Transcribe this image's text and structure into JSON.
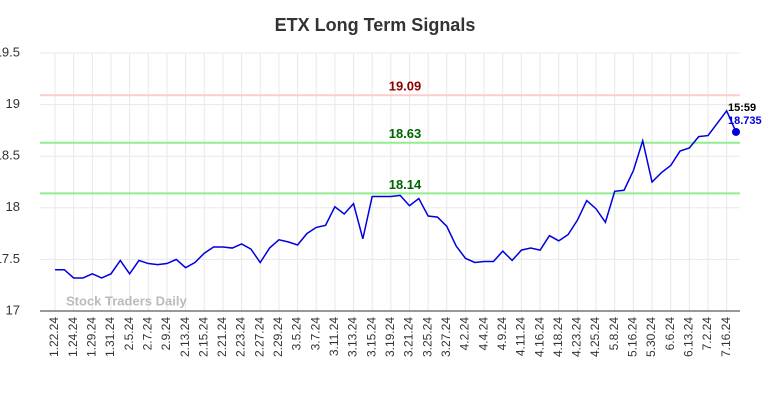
{
  "chart_data": {
    "type": "line",
    "title": "ETX Long Term Signals",
    "categories": [
      "1.22.24",
      null,
      "1.24.24",
      null,
      "1.29.24",
      null,
      "1.31.24",
      null,
      "2.5.24",
      null,
      "2.7.24",
      null,
      "2.9.24",
      null,
      "2.13.24",
      null,
      "2.15.24",
      null,
      "2.21.24",
      null,
      "2.23.24",
      null,
      "2.27.24",
      null,
      "2.29.24",
      null,
      "3.5.24",
      null,
      "3.7.24",
      null,
      "3.11.24",
      null,
      "3.13.24",
      null,
      "3.15.24",
      null,
      "3.19.24",
      null,
      "3.21.24",
      null,
      "3.25.24",
      null,
      "3.27.24",
      null,
      "4.2.24",
      null,
      "4.4.24",
      null,
      "4.9.24",
      null,
      "4.11.24",
      null,
      "4.16.24",
      null,
      "4.18.24",
      null,
      "4.23.24",
      null,
      "4.25.24",
      null,
      "5.8.24",
      null,
      "5.16.24",
      null,
      "5.30.24",
      null,
      "6.6.24",
      null,
      "6.13.24",
      null,
      "7.2.24",
      null,
      "7.16.24",
      null
    ],
    "series": [
      {
        "color": "#0000e0",
        "values": [
          17.4,
          17.4,
          17.32,
          17.32,
          17.36,
          17.32,
          17.36,
          17.49,
          17.36,
          17.49,
          17.46,
          17.45,
          17.46,
          17.5,
          17.42,
          17.47,
          17.56,
          17.62,
          17.62,
          17.61,
          17.65,
          17.6,
          17.47,
          17.61,
          17.69,
          17.67,
          17.64,
          17.75,
          17.81,
          17.83,
          18.01,
          17.94,
          18.04,
          17.7,
          18.11,
          18.11,
          18.11,
          18.12,
          18.02,
          18.09,
          17.92,
          17.91,
          17.82,
          17.63,
          17.51,
          17.47,
          17.48,
          17.48,
          17.58,
          17.49,
          17.59,
          17.61,
          17.59,
          17.73,
          17.68,
          17.74,
          17.88,
          18.07,
          17.99,
          17.86,
          18.16,
          18.17,
          18.36,
          18.65,
          18.25,
          18.34,
          18.41,
          18.55,
          18.58,
          18.69,
          18.7,
          18.82,
          18.94,
          18.735
        ]
      }
    ],
    "ylim": [
      17,
      19.5
    ],
    "yticks": [
      17,
      17.5,
      18,
      18.5,
      19,
      19.5
    ],
    "grid": true,
    "hlines": [
      {
        "value": 19.09,
        "color": "#ffcccc",
        "label_color": "#8b0000"
      },
      {
        "value": 18.63,
        "color": "#90ee90",
        "label_color": "#006400"
      },
      {
        "value": 18.14,
        "color": "#90ee90",
        "label_color": "#006400"
      }
    ],
    "last_point_annotation": "15:59",
    "watermark": "Stock Traders Daily"
  }
}
